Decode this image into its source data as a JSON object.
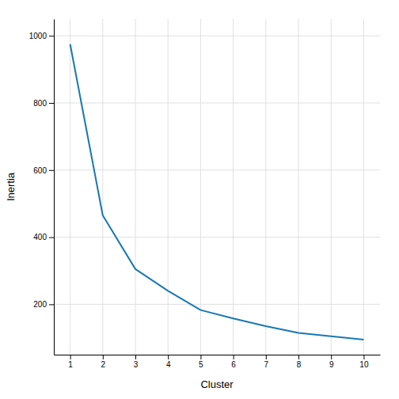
{
  "chart_data": {
    "type": "line",
    "xlabel": "Cluster",
    "ylabel": "Inertia",
    "x": [
      1,
      2,
      3,
      4,
      5,
      6,
      7,
      8,
      9,
      10
    ],
    "values": [
      975,
      465,
      305,
      240,
      183,
      158,
      135,
      115,
      105,
      95
    ],
    "color": "#1878b4",
    "xlim": [
      0.5,
      10.5
    ],
    "ylim": [
      50,
      1050
    ],
    "xticks": [
      1,
      2,
      3,
      4,
      5,
      6,
      7,
      8,
      9,
      10
    ],
    "yticks": [
      200,
      400,
      600,
      800,
      1000
    ],
    "grid": true
  }
}
